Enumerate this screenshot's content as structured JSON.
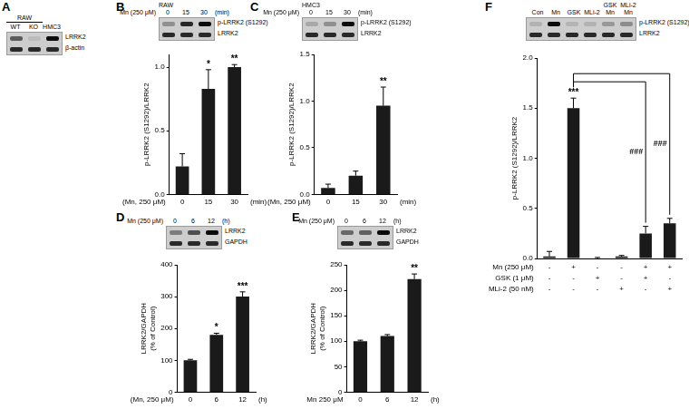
{
  "chart_data": [
    {
      "panel": "B",
      "type": "bar",
      "categories": [
        "0",
        "15",
        "30"
      ],
      "values": [
        0.22,
        0.83,
        1.0
      ],
      "errors": [
        0.1,
        0.15,
        0.02
      ],
      "significance": [
        null,
        "*",
        "**"
      ],
      "ylabel": "p-LRRK2 (S1292)/LRRK2",
      "xlabel": "(Mn, 250 μM)",
      "x_unit": "(min)",
      "ylim": [
        0,
        1.1
      ],
      "yticks": [
        {
          "value": 0,
          "label": "0.0"
        },
        0.5,
        {
          "value": 1,
          "label": "1.0"
        }
      ],
      "color": "#1a1a1a",
      "grid": false,
      "blot": {
        "cell": "RAW",
        "treatment": "Mn (250 μM)",
        "lanes": [
          "0",
          "15",
          "30"
        ],
        "unit": "(min)",
        "rows": [
          "p-LRRK2 (S1292)",
          "LRRK2"
        ]
      }
    },
    {
      "panel": "C",
      "type": "bar",
      "categories": [
        "0",
        "15",
        "30"
      ],
      "values": [
        0.07,
        0.2,
        0.95
      ],
      "errors": [
        0.04,
        0.05,
        0.2
      ],
      "significance": [
        null,
        null,
        "**"
      ],
      "ylabel": "p-LRRK2 (S1292)/LRRK2",
      "xlabel": "(Mn, 250 μM)",
      "x_unit": "(min)",
      "ylim": [
        0,
        1.5
      ],
      "yticks": [
        {
          "value": 0,
          "label": "0.0"
        },
        0.5,
        {
          "value": 1,
          "label": "1.0"
        },
        1.5
      ],
      "color": "#1a1a1a",
      "grid": false,
      "blot": {
        "cell": "HMC3",
        "treatment": "Mn (250 μM)",
        "lanes": [
          "0",
          "15",
          "30"
        ],
        "unit": "(min)",
        "rows": [
          "p-LRRK2 (S1292)",
          "LRRK2"
        ]
      }
    },
    {
      "panel": "D",
      "type": "bar",
      "categories": [
        "0",
        "6",
        "12"
      ],
      "values": [
        100,
        180,
        300
      ],
      "errors": [
        3,
        5,
        15
      ],
      "significance": [
        null,
        "*",
        "***"
      ],
      "ylabel": [
        "LRRK2/GAPDH",
        "(% of Control)"
      ],
      "xlabel": "(Mn, 250 μM)",
      "x_unit": "(h)",
      "ylim": [
        0,
        400
      ],
      "yticks": [
        0,
        100,
        200,
        300,
        400
      ],
      "color": "#1a1a1a",
      "grid": false,
      "blot": {
        "treatment": "Mn (250 μM)",
        "lanes": [
          "0",
          "6",
          "12"
        ],
        "unit": "(h)",
        "rows": [
          "LRRK2",
          "GAPDH"
        ]
      }
    },
    {
      "panel": "E",
      "type": "bar",
      "categories": [
        "0",
        "6",
        "12"
      ],
      "values": [
        100,
        110,
        222
      ],
      "errors": [
        2,
        3,
        10
      ],
      "significance": [
        null,
        null,
        "**"
      ],
      "ylabel": [
        "LRRK2/GAPDH",
        "(% of Control)"
      ],
      "xlabel": "Mn 250 μM",
      "x_unit": "(h)",
      "ylim": [
        0,
        250
      ],
      "yticks": [
        0,
        50,
        100,
        150,
        200,
        250
      ],
      "color": "#1a1a1a",
      "grid": false,
      "blot": {
        "treatment": "Mn (250 μM)",
        "lanes": [
          "0",
          "6",
          "12"
        ],
        "unit": "(h)",
        "rows": [
          "LRRK2",
          "GAPDH"
        ]
      }
    },
    {
      "panel": "F",
      "type": "bar",
      "categories": [
        null,
        null,
        null,
        null,
        null,
        null
      ],
      "values": [
        0.02,
        1.5,
        0.0,
        0.02,
        0.25,
        0.35
      ],
      "errors": [
        0.05,
        0.1,
        0.01,
        0.01,
        0.07,
        0.05
      ],
      "significance": [
        null,
        "***",
        null,
        null,
        null,
        null
      ],
      "brackets": [
        {
          "from": "Mn",
          "to": "GSK Mn",
          "label": "###"
        },
        {
          "from": "Mn",
          "to": "MLi-2 Mn",
          "label": "###"
        }
      ],
      "treatments": [
        {
          "label": "Mn (250 μM)",
          "signs": [
            "-",
            "+",
            "-",
            "-",
            "+",
            "+"
          ]
        },
        {
          "label": "GSK (1 μM)",
          "signs": [
            "-",
            "-",
            "+",
            "-",
            "+",
            "-"
          ]
        },
        {
          "label": "MLi-2 (50 nM)",
          "signs": [
            "-",
            "-",
            "-",
            "+",
            "-",
            "+"
          ]
        }
      ],
      "ylabel": "p-LRRK2 (S1292)/LRRK2",
      "tick_labels": "y",
      "ylim": [
        0,
        2
      ],
      "yticks": [
        {
          "value": 0,
          "label": "0.0"
        },
        0.5,
        {
          "value": 1,
          "label": "1.0"
        },
        1.5,
        {
          "value": 2,
          "label": "2.0"
        }
      ],
      "color": "#1a1a1a",
      "grid": false,
      "blot": {
        "lanes": [
          "Con",
          "Mn",
          "GSK",
          "MLi-2",
          "GSK Mn",
          "MLi-2 Mn"
        ],
        "rows": [
          "p-LRRK2 (S1292)",
          "LRRK2"
        ]
      }
    }
  ],
  "panel_a": {
    "panel": "A",
    "group": "RAW",
    "lanes": [
      "WT",
      "KO",
      "HMC3"
    ],
    "rows": [
      "LRRK2",
      "β-actin"
    ]
  }
}
